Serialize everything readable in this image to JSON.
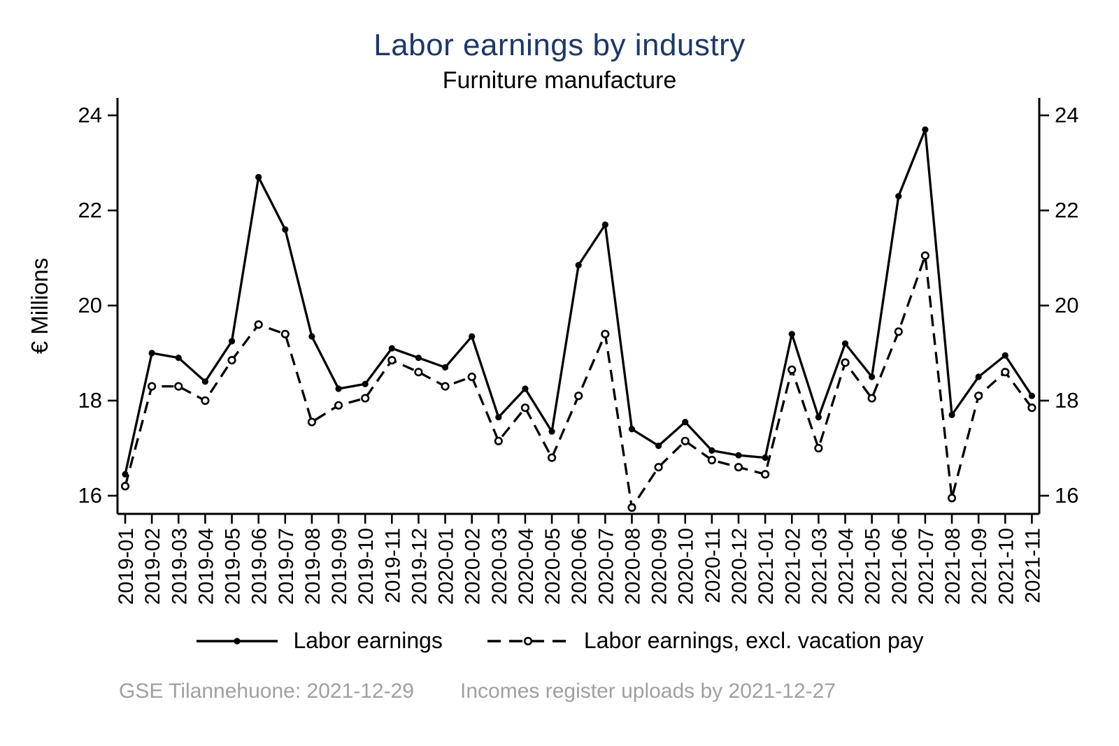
{
  "header": {
    "title": "Labor earnings by industry",
    "subtitle": "Furniture manufacture"
  },
  "chart_data": {
    "type": "line",
    "title": "Labor earnings by industry",
    "subtitle": "Furniture manufacture",
    "xlabel": "",
    "ylabel": "€ Millions",
    "ylim": [
      15.6,
      24.75
    ],
    "yticks": [
      16,
      18,
      20,
      22,
      24
    ],
    "grid": false,
    "legend_position": "bottom-center",
    "categories": [
      "2019-01",
      "2019-02",
      "2019-03",
      "2019-04",
      "2019-05",
      "2019-06",
      "2019-07",
      "2019-08",
      "2019-09",
      "2019-10",
      "2019-11",
      "2019-12",
      "2020-01",
      "2020-02",
      "2020-03",
      "2020-04",
      "2020-05",
      "2020-06",
      "2020-07",
      "2020-08",
      "2020-09",
      "2020-10",
      "2020-11",
      "2020-12",
      "2021-01",
      "2021-02",
      "2021-03",
      "2021-04",
      "2021-05",
      "2021-06",
      "2021-07",
      "2021-08",
      "2021-09",
      "2021-10",
      "2021-11"
    ],
    "series": [
      {
        "name": "Labor earnings",
        "line_style": "solid",
        "marker": "filled-circle",
        "color": "#000000",
        "values": [
          16.45,
          19.0,
          18.9,
          18.4,
          19.25,
          22.7,
          21.6,
          19.35,
          18.25,
          18.35,
          19.1,
          18.9,
          18.7,
          19.35,
          17.65,
          18.25,
          17.35,
          20.85,
          21.7,
          17.4,
          17.05,
          17.55,
          16.95,
          16.85,
          16.8,
          19.4,
          17.65,
          19.2,
          18.5,
          22.3,
          23.7,
          17.7,
          18.5,
          18.95,
          18.1
        ]
      },
      {
        "name": "Labor earnings, excl. vacation pay",
        "line_style": "dashed",
        "marker": "open-circle",
        "color": "#000000",
        "values": [
          16.2,
          18.3,
          18.3,
          18.0,
          18.85,
          19.6,
          19.4,
          17.55,
          17.9,
          18.05,
          18.85,
          18.6,
          18.3,
          18.5,
          17.15,
          17.85,
          16.8,
          18.1,
          19.4,
          15.75,
          16.6,
          17.15,
          16.75,
          16.6,
          16.45,
          18.65,
          17.0,
          18.8,
          18.05,
          19.45,
          21.05,
          15.95,
          18.1,
          18.6,
          17.85
        ]
      }
    ]
  },
  "legend": {
    "items": [
      {
        "label": "Labor earnings"
      },
      {
        "label": "Labor earnings, excl. vacation pay"
      }
    ]
  },
  "footer": {
    "left": "GSE Tilannehuone: 2021-12-29",
    "right": "Incomes register uploads by 2021-12-27"
  },
  "colors": {
    "title": "#1f3864",
    "axis": "#000000",
    "series": "#000000",
    "footer": "#a0a0a0"
  }
}
